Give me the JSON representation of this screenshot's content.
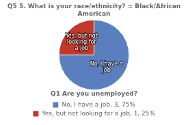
{
  "chart_data": {
    "type": "pie",
    "title": "Q5 5. What is your race/ethnicity? = Black/African American",
    "categories": [
      "No, I have a job",
      "Yes, but not looking for a job"
    ],
    "values": [
      75,
      25
    ],
    "colors": [
      "#5b7fbe",
      "#c0392b"
    ],
    "legend_title": "Q1 Are you unemployed?",
    "legend_labels": [
      "No, I have a job, 3, 75%",
      "Yes, but not looking for a job, 1, 25%"
    ],
    "legend": "bottom"
  }
}
